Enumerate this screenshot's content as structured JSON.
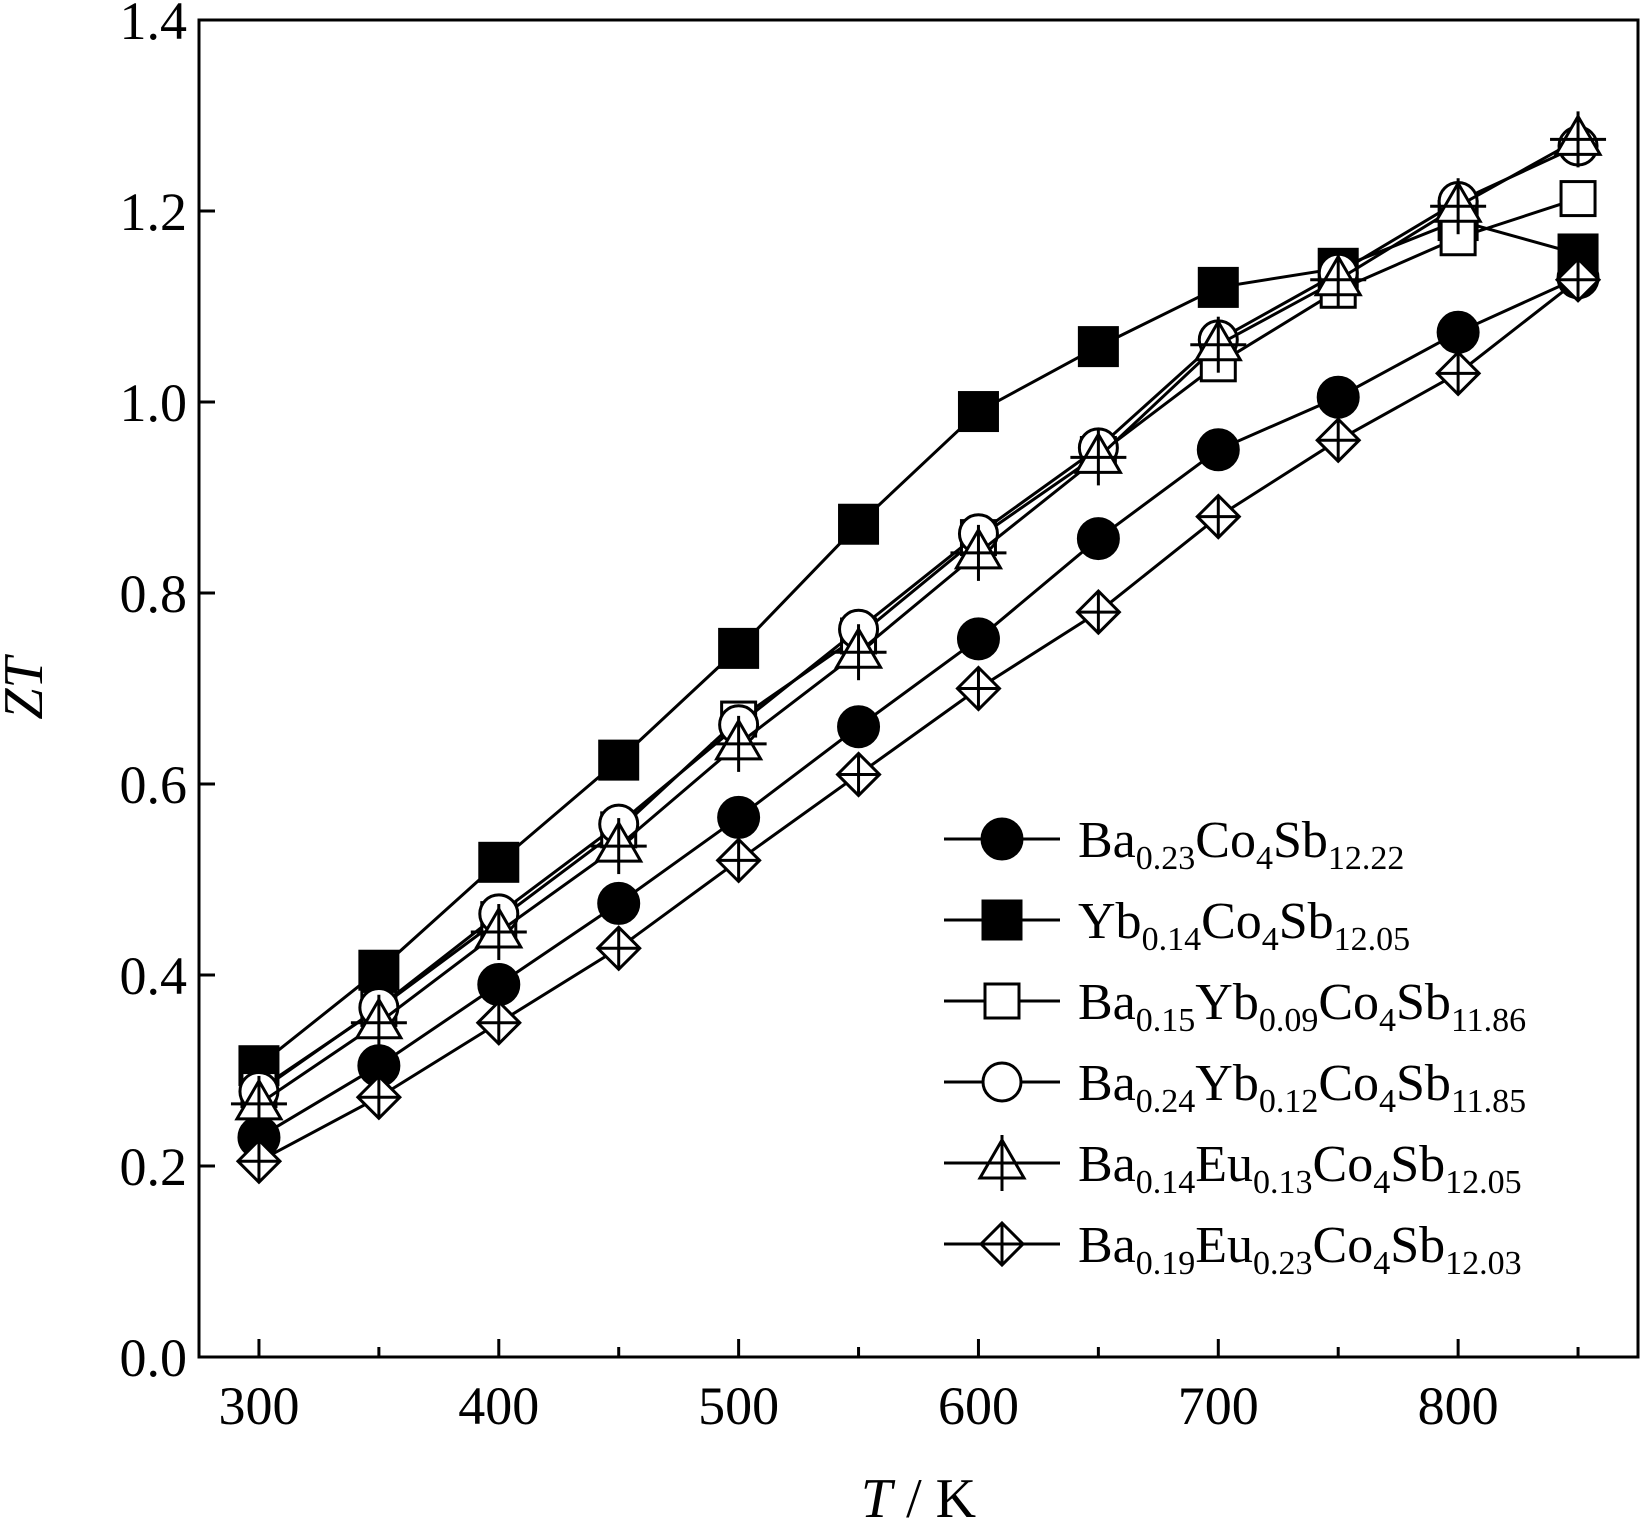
{
  "chart_data": {
    "type": "line",
    "xlabel_symbol": "T",
    "xlabel_unit": "K",
    "ylabel": "ZT",
    "xlim": [
      275,
      875
    ],
    "ylim": [
      0.0,
      1.4
    ],
    "xticks": [
      300,
      400,
      500,
      600,
      700,
      800
    ],
    "xtick_minor": [
      350,
      450,
      550,
      650,
      750,
      850
    ],
    "yticks": [
      "0.0",
      "0.2",
      "0.4",
      "0.6",
      "0.8",
      "1.0",
      "1.2",
      "1.4"
    ],
    "grid": false,
    "legend_position": "bottom-right",
    "x": [
      300,
      350,
      400,
      450,
      500,
      550,
      600,
      650,
      700,
      750,
      800,
      850
    ],
    "series": [
      {
        "name": "Ba0.23Co4Sb12.22",
        "name_parts": [
          [
            "Ba",
            false
          ],
          [
            "0.23",
            true
          ],
          [
            "Co",
            false
          ],
          [
            "4",
            true
          ],
          [
            "Sb",
            false
          ],
          [
            "12.22",
            true
          ]
        ],
        "marker": "filled-circle",
        "values": [
          0.23,
          0.305,
          0.39,
          0.475,
          0.565,
          0.66,
          0.752,
          0.857,
          0.95,
          1.005,
          1.073,
          1.13
        ]
      },
      {
        "name": "Yb0.14Co4Sb12.05",
        "name_parts": [
          [
            "Yb",
            false
          ],
          [
            "0.14",
            true
          ],
          [
            "Co",
            false
          ],
          [
            "4",
            true
          ],
          [
            "Sb",
            false
          ],
          [
            "12.05",
            true
          ]
        ],
        "marker": "filled-square",
        "values": [
          0.305,
          0.405,
          0.518,
          0.625,
          0.742,
          0.872,
          0.99,
          1.058,
          1.12,
          1.14,
          1.19,
          1.155
        ]
      },
      {
        "name": "Ba0.15Yb0.09Co4Sb11.86",
        "name_parts": [
          [
            "Ba",
            false
          ],
          [
            "0.15",
            true
          ],
          [
            "Yb",
            false
          ],
          [
            "0.09",
            true
          ],
          [
            "Co",
            false
          ],
          [
            "4",
            true
          ],
          [
            "Sb",
            false
          ],
          [
            "11.86",
            true
          ]
        ],
        "marker": "open-square",
        "values": [
          0.28,
          0.365,
          0.458,
          0.552,
          0.668,
          0.755,
          0.858,
          0.945,
          1.04,
          1.117,
          1.172,
          1.213
        ]
      },
      {
        "name": "Ba0.24Yb0.12Co4Sb11.85",
        "name_parts": [
          [
            "Ba",
            false
          ],
          [
            "0.24",
            true
          ],
          [
            "Yb",
            false
          ],
          [
            "0.12",
            true
          ],
          [
            "Co",
            false
          ],
          [
            "4",
            true
          ],
          [
            "Sb",
            false
          ],
          [
            "11.85",
            true
          ]
        ],
        "marker": "open-circle",
        "values": [
          0.278,
          0.366,
          0.464,
          0.558,
          0.662,
          0.762,
          0.862,
          0.952,
          1.065,
          1.135,
          1.21,
          1.268
        ]
      },
      {
        "name": "Ba0.14Eu0.13Co4Sb12.05",
        "name_parts": [
          [
            "Ba",
            false
          ],
          [
            "0.14",
            true
          ],
          [
            "Eu",
            false
          ],
          [
            "0.13",
            true
          ],
          [
            "Co",
            false
          ],
          [
            "4",
            true
          ],
          [
            "Sb",
            false
          ],
          [
            "12.05",
            true
          ]
        ],
        "marker": "triangle-cross",
        "values": [
          0.265,
          0.35,
          0.445,
          0.535,
          0.642,
          0.738,
          0.842,
          0.942,
          1.06,
          1.128,
          1.205,
          1.275
        ]
      },
      {
        "name": "Ba0.19Eu0.23Co4Sb12.03",
        "name_parts": [
          [
            "Ba",
            false
          ],
          [
            "0.19",
            true
          ],
          [
            "Eu",
            false
          ],
          [
            "0.23",
            true
          ],
          [
            "Co",
            false
          ],
          [
            "4",
            true
          ],
          [
            "Sb",
            false
          ],
          [
            "12.03",
            true
          ]
        ],
        "marker": "diamond-cross",
        "values": [
          0.205,
          0.272,
          0.35,
          0.428,
          0.52,
          0.61,
          0.7,
          0.78,
          0.88,
          0.96,
          1.03,
          1.128
        ]
      }
    ]
  }
}
